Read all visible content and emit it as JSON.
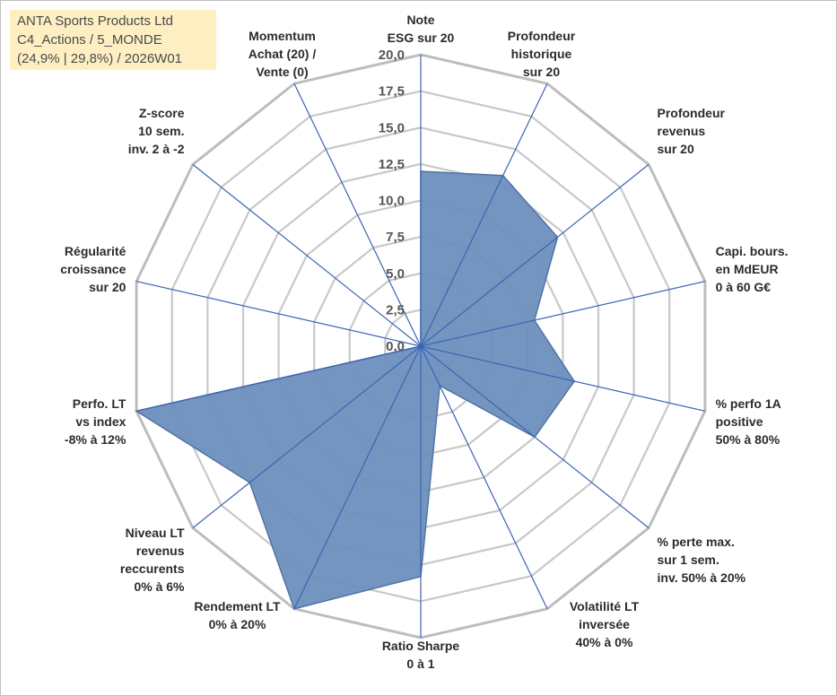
{
  "title_box": {
    "line1": "ANTA Sports Products Ltd",
    "line2": "C4_Actions / 5_MONDE",
    "line3": "(24,9% | 29,8%) / 2026W01"
  },
  "chart_data": {
    "type": "radar",
    "r_range": [
      0,
      20
    ],
    "r_ticks": [
      "0,0",
      "2,5",
      "5,0",
      "7,5",
      "10,0",
      "12,5",
      "15,0",
      "17,5",
      "20,0"
    ],
    "grid": true,
    "axes": [
      [
        "Note",
        "ESG sur 20"
      ],
      [
        "Profondeur",
        "historique",
        "sur 20"
      ],
      [
        "Profondeur",
        "revenus",
        "sur 20"
      ],
      [
        "Capi. bours.",
        "en MdEUR",
        "0 à 60 G€"
      ],
      [
        "% perfo 1A",
        "positive",
        "50% à 80%"
      ],
      [
        "% perte max.",
        "sur 1 sem.",
        "inv. 50% à 20%"
      ],
      [
        "Volatilité LT",
        "inversée",
        "40% à 0%"
      ],
      [
        "Ratio Sharpe",
        "0 à 1"
      ],
      [
        "Rendement LT",
        "0% à 20%"
      ],
      [
        "Niveau LT",
        "revenus",
        "reccurents",
        "0% à 6%"
      ],
      [
        "Perfo. LT",
        "vs index",
        "-8% à 12%"
      ],
      [
        "Régularité",
        "croissance",
        "sur 20"
      ],
      [
        "Z-score",
        "10 sem.",
        "inv. 2 à -2"
      ],
      [
        "Momentum",
        "Achat (20) /",
        "Vente (0)"
      ]
    ],
    "series": [
      {
        "values": [
          12.0,
          13.0,
          12.0,
          8.0,
          10.8,
          10.0,
          3.0,
          15.8,
          20.0,
          15.0,
          20.0,
          0.0,
          0.0,
          0.0
        ]
      }
    ],
    "colors": {
      "fill": "#6d8fbd",
      "stroke": "#4f73a6",
      "grid": "#c8c8c8",
      "outer": "#bdbdbd",
      "spokes": "#3b64b4"
    }
  }
}
